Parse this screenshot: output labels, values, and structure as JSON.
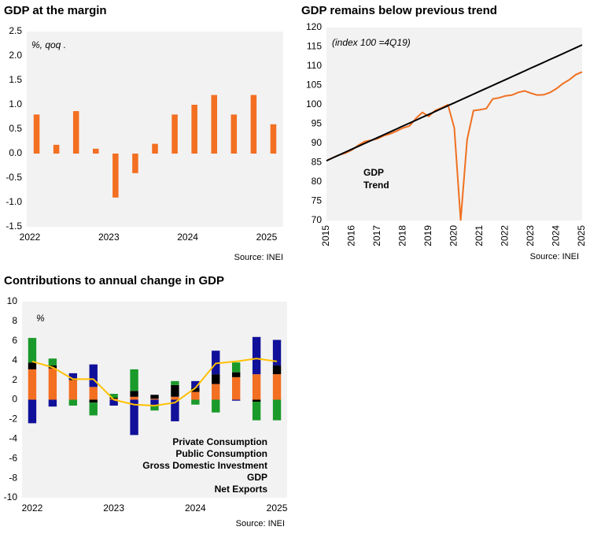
{
  "chart_data": [
    {
      "type": "bar",
      "title": "GDP at the margin",
      "annotation": "%, qoq .",
      "source": "Source: INEI",
      "categories": [
        "2022",
        null,
        null,
        null,
        "2023",
        null,
        null,
        null,
        "2024",
        null,
        null,
        null,
        "2025"
      ],
      "values": [
        0.8,
        0.18,
        0.87,
        0.1,
        -0.9,
        -0.4,
        0.2,
        0.8,
        1.0,
        1.2,
        0.8,
        1.2,
        0.6
      ],
      "color": "#f36f21",
      "ylim": [
        -1.5,
        2.5
      ],
      "yticks": [
        2.5,
        {
          "value": 2,
          "label": "2.0"
        },
        1.5,
        {
          "value": 1,
          "label": "1.0"
        },
        0.5,
        {
          "value": 0,
          "label": "0.0"
        },
        -0.5,
        {
          "value": -1,
          "label": "-1.0"
        },
        -1.5
      ],
      "grid": false
    },
    {
      "type": "line",
      "title": "GDP remains below previous trend",
      "annotation": "(index 100 =4Q19)",
      "source": "Source: INEI",
      "categories": [
        "2015",
        null,
        null,
        null,
        "2016",
        null,
        null,
        null,
        "2017",
        null,
        null,
        null,
        "2018",
        null,
        null,
        null,
        "2019",
        null,
        null,
        null,
        "2020",
        null,
        null,
        null,
        "2021",
        null,
        null,
        null,
        "2022",
        null,
        null,
        null,
        "2023",
        null,
        null,
        null,
        "2024",
        null,
        null,
        null,
        "2025"
      ],
      "series": [
        {
          "name": "GDP",
          "color": "#f07020",
          "values": [
            85.5,
            86.3,
            87.0,
            87.5,
            88.3,
            89.5,
            90.5,
            90.8,
            91.2,
            92.0,
            92.5,
            93.2,
            94.0,
            94.5,
            96.5,
            98.0,
            97.0,
            98.5,
            99.2,
            100.0,
            94.0,
            70.0,
            91.0,
            98.5,
            98.7,
            99.0,
            101.5,
            101.8,
            102.3,
            102.5,
            103.2,
            103.6,
            103.0,
            102.5,
            102.6,
            103.2,
            104.2,
            105.5,
            106.5,
            107.8,
            108.5
          ]
        },
        {
          "name": "Trend",
          "color": "#000000",
          "values": [
            85.5,
            86.25,
            87,
            87.75,
            88.5,
            89.25,
            90,
            90.75,
            91.5,
            92.25,
            93,
            93.75,
            94.5,
            95.25,
            96,
            96.75,
            97.5,
            98.25,
            99,
            99.75,
            100.5,
            101.25,
            102,
            102.75,
            103.5,
            104.25,
            105,
            105.75,
            106.5,
            107.25,
            108,
            108.75,
            109.5,
            110.25,
            111,
            111.75,
            112.5,
            113.25,
            114,
            114.75,
            115.5
          ]
        }
      ],
      "ylim": [
        70,
        120
      ],
      "yticks": [
        70,
        75,
        80,
        85,
        90,
        95,
        100,
        105,
        110,
        115,
        120
      ],
      "grid": false
    },
    {
      "type": "stacked_bar",
      "title": "Contributions to annual change in GDP",
      "annotation": "%",
      "source": "Source: INEI",
      "categories": [
        "2022",
        null,
        null,
        null,
        "2023",
        null,
        null,
        null,
        "2024",
        null,
        null,
        null,
        "2025"
      ],
      "series": [
        {
          "name": "Private Consumption",
          "color": "#f36f21",
          "style": "bar",
          "values": [
            3.1,
            3.2,
            2.0,
            1.3,
            0.1,
            0.3,
            0.1,
            0.3,
            0.8,
            1.6,
            2.3,
            2.6,
            2.6
          ]
        },
        {
          "name": "Public Consumption",
          "color": "#000000",
          "style": "bar",
          "values": [
            0.7,
            0.3,
            0.1,
            -0.3,
            0.1,
            0.6,
            0.4,
            1.2,
            0.4,
            1.0,
            0.5,
            -0.2,
            0.9
          ]
        },
        {
          "name": "Gross Domestic Investment",
          "color": "#10109a",
          "style": "bar",
          "values": [
            -2.4,
            -0.7,
            0.6,
            2.3,
            -0.6,
            -3.6,
            -0.6,
            -2.2,
            0.7,
            2.4,
            -0.1,
            3.8,
            2.6
          ]
        },
        {
          "name": "GDP",
          "color": "#ffc000",
          "style": "line",
          "values": [
            3.9,
            3.3,
            2.1,
            2.1,
            0.0,
            -0.5,
            -0.6,
            -0.3,
            1.2,
            3.7,
            3.9,
            4.2,
            3.9
          ]
        },
        {
          "name": "Net Exports",
          "color": "#1a9a2a",
          "style": "bar",
          "values": [
            2.5,
            0.7,
            -0.6,
            -1.3,
            0.4,
            2.2,
            -0.5,
            0.4,
            -0.5,
            -1.3,
            1.0,
            -1.9,
            -2.1
          ]
        }
      ],
      "ylim": [
        -10,
        10
      ],
      "yticks": [
        -10,
        -8,
        -6,
        -4,
        -2,
        0,
        2,
        4,
        6,
        8,
        10
      ],
      "grid": false
    }
  ]
}
